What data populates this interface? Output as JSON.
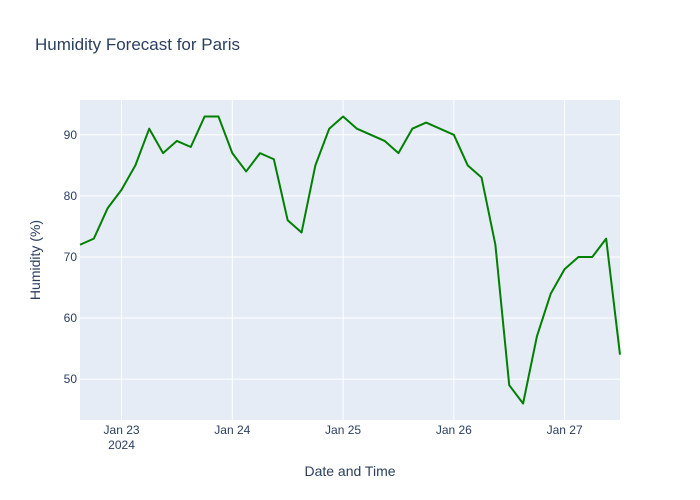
{
  "chart_data": {
    "type": "line",
    "title": "Humidity Forecast for Paris",
    "xlabel": "Date and Time",
    "ylabel": "Humidity (%)",
    "x_ticks": [
      {
        "date": "2024-01-23",
        "label": "Jan 23",
        "sublabel": "2024"
      },
      {
        "date": "2024-01-24",
        "label": "Jan 24",
        "sublabel": ""
      },
      {
        "date": "2024-01-25",
        "label": "Jan 25",
        "sublabel": ""
      },
      {
        "date": "2024-01-26",
        "label": "Jan 26",
        "sublabel": ""
      },
      {
        "date": "2024-01-27",
        "label": "Jan 27",
        "sublabel": ""
      }
    ],
    "y_ticks": [
      50,
      60,
      70,
      80,
      90
    ],
    "xlim": [
      "2024-01-22 15:00",
      "2024-01-27 12:00"
    ],
    "ylim": [
      43.3,
      95.7
    ],
    "grid": true,
    "series": [
      {
        "color": "#008000",
        "points": [
          {
            "x": "2024-01-22 15:00",
            "y": 72
          },
          {
            "x": "2024-01-22 18:00",
            "y": 73
          },
          {
            "x": "2024-01-22 21:00",
            "y": 78
          },
          {
            "x": "2024-01-23 00:00",
            "y": 81
          },
          {
            "x": "2024-01-23 03:00",
            "y": 85
          },
          {
            "x": "2024-01-23 06:00",
            "y": 91
          },
          {
            "x": "2024-01-23 09:00",
            "y": 87
          },
          {
            "x": "2024-01-23 12:00",
            "y": 89
          },
          {
            "x": "2024-01-23 15:00",
            "y": 88
          },
          {
            "x": "2024-01-23 18:00",
            "y": 93
          },
          {
            "x": "2024-01-23 21:00",
            "y": 93
          },
          {
            "x": "2024-01-24 00:00",
            "y": 87
          },
          {
            "x": "2024-01-24 03:00",
            "y": 84
          },
          {
            "x": "2024-01-24 06:00",
            "y": 87
          },
          {
            "x": "2024-01-24 09:00",
            "y": 86
          },
          {
            "x": "2024-01-24 12:00",
            "y": 76
          },
          {
            "x": "2024-01-24 15:00",
            "y": 74
          },
          {
            "x": "2024-01-24 18:00",
            "y": 85
          },
          {
            "x": "2024-01-24 21:00",
            "y": 91
          },
          {
            "x": "2024-01-25 00:00",
            "y": 93
          },
          {
            "x": "2024-01-25 03:00",
            "y": 91
          },
          {
            "x": "2024-01-25 09:00",
            "y": 89
          },
          {
            "x": "2024-01-25 12:00",
            "y": 87
          },
          {
            "x": "2024-01-25 15:00",
            "y": 91
          },
          {
            "x": "2024-01-25 18:00",
            "y": 92
          },
          {
            "x": "2024-01-26 00:00",
            "y": 90
          },
          {
            "x": "2024-01-26 03:00",
            "y": 85
          },
          {
            "x": "2024-01-26 06:00",
            "y": 83
          },
          {
            "x": "2024-01-26 09:00",
            "y": 72
          },
          {
            "x": "2024-01-26 12:00",
            "y": 49
          },
          {
            "x": "2024-01-26 15:00",
            "y": 46
          },
          {
            "x": "2024-01-26 18:00",
            "y": 57
          },
          {
            "x": "2024-01-26 21:00",
            "y": 64
          },
          {
            "x": "2024-01-27 00:00",
            "y": 68
          },
          {
            "x": "2024-01-27 03:00",
            "y": 70
          },
          {
            "x": "2024-01-27 06:00",
            "y": 70
          },
          {
            "x": "2024-01-27 09:00",
            "y": 73
          },
          {
            "x": "2024-01-27 12:00",
            "y": 54
          }
        ]
      }
    ]
  }
}
